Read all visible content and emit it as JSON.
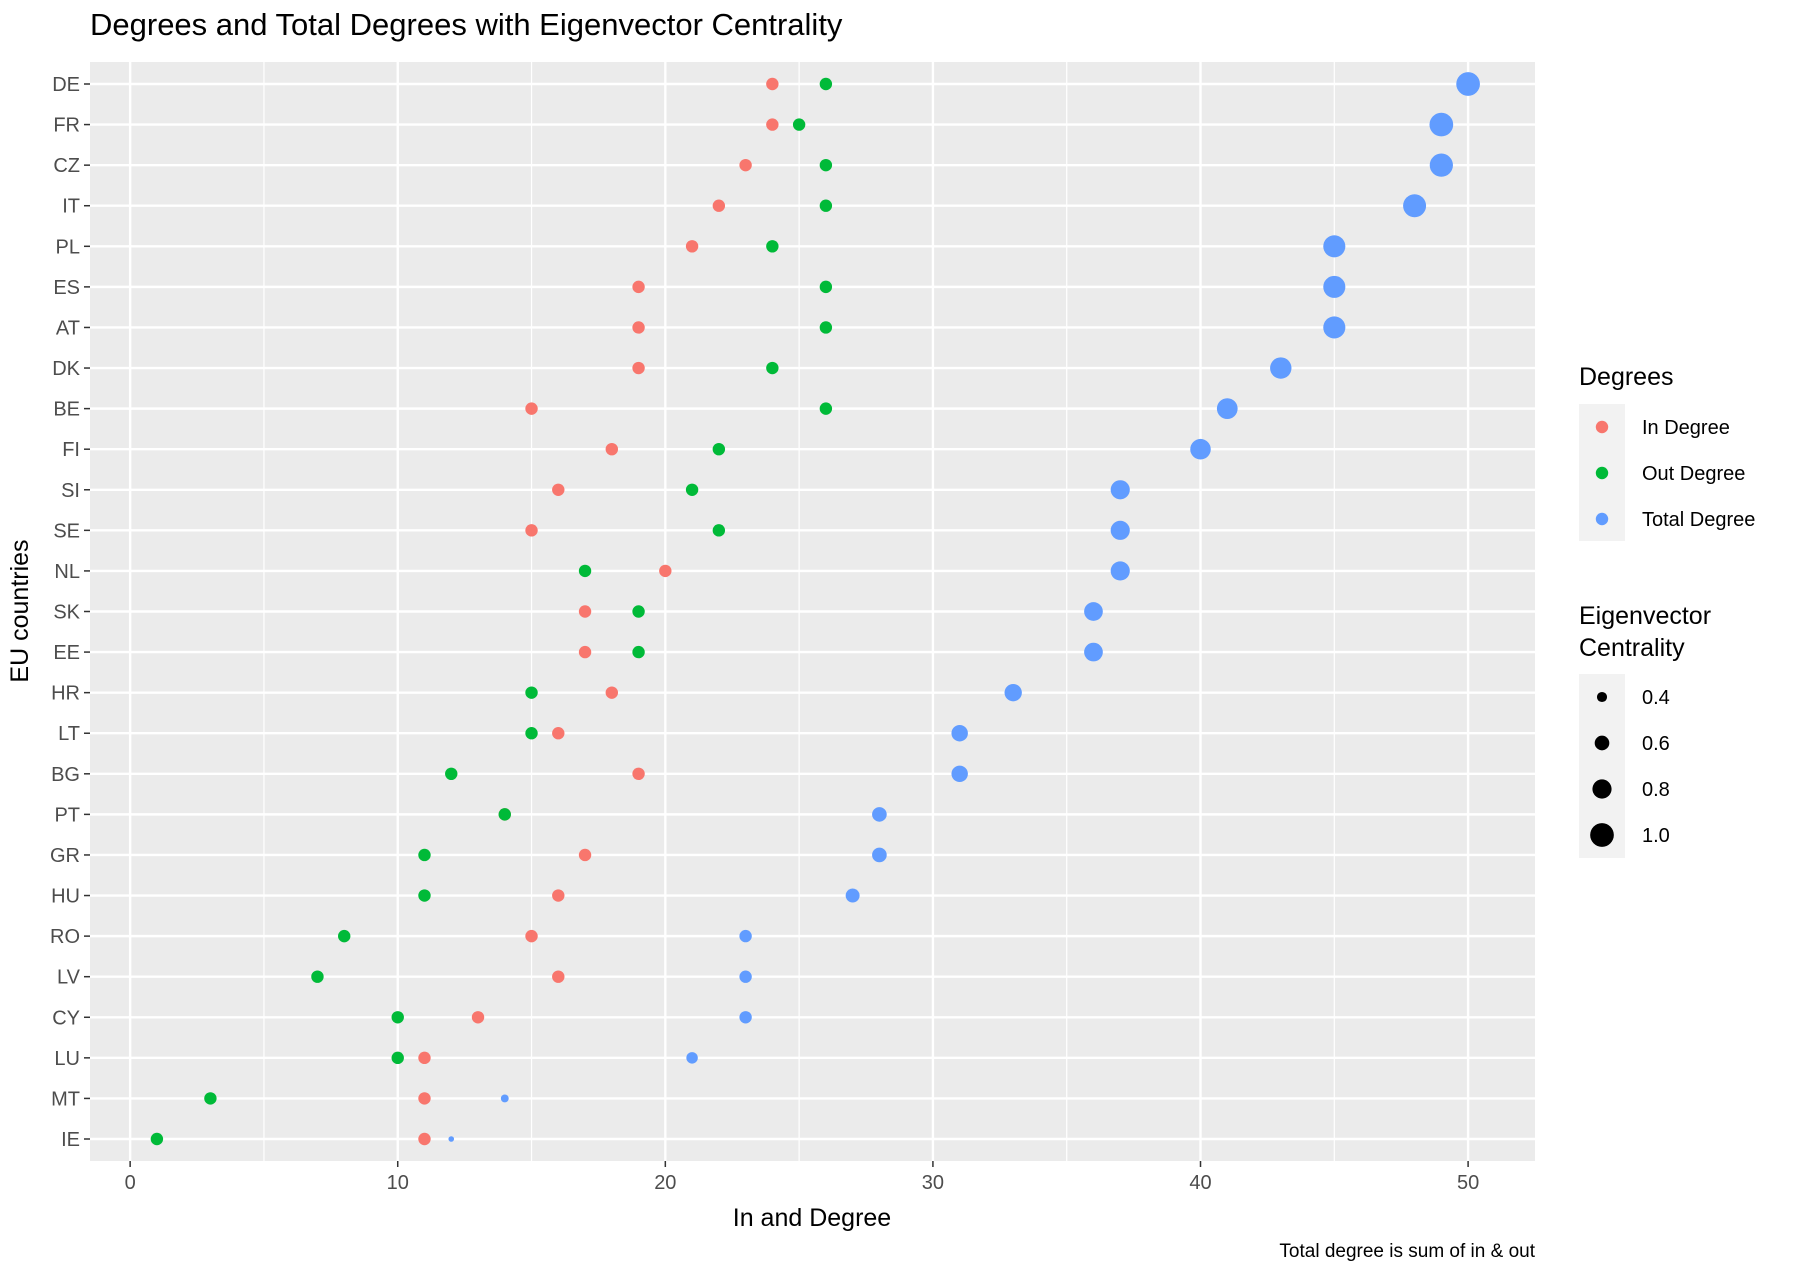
{
  "chart_data": {
    "type": "scatter",
    "title": "Degrees and Total Degrees with Eigenvector Centrality",
    "xlabel": "In and Degree",
    "ylabel": "EU countries",
    "caption": "Total degree is sum of in & out",
    "xlim": [
      -1.5,
      52.5
    ],
    "xticks": [
      0,
      10,
      20,
      30,
      40,
      50
    ],
    "grid": true,
    "legend_position": "right",
    "countries": [
      "DE",
      "FR",
      "CZ",
      "IT",
      "PL",
      "ES",
      "AT",
      "DK",
      "BE",
      "FI",
      "SI",
      "SE",
      "NL",
      "SK",
      "EE",
      "HR",
      "LT",
      "BG",
      "PT",
      "GR",
      "HU",
      "RO",
      "LV",
      "CY",
      "LU",
      "MT",
      "IE"
    ],
    "series": [
      {
        "name": "In Degree",
        "color": "#F8766D",
        "values": [
          24,
          24,
          23,
          22,
          21,
          19,
          19,
          19,
          15,
          18,
          16,
          15,
          20,
          17,
          17,
          18,
          16,
          19,
          14,
          17,
          16,
          15,
          16,
          13,
          11,
          11,
          11
        ],
        "hidden_by_overlap": [
          "PT"
        ]
      },
      {
        "name": "Out Degree",
        "color": "#00BA38",
        "values": [
          26,
          25,
          26,
          26,
          24,
          26,
          26,
          24,
          26,
          22,
          21,
          22,
          17,
          19,
          19,
          15,
          15,
          12,
          14,
          11,
          11,
          8,
          7,
          10,
          10,
          3,
          1
        ]
      },
      {
        "name": "Total Degree",
        "color": "#619CFF",
        "values": [
          50,
          49,
          49,
          48,
          45,
          45,
          45,
          43,
          41,
          40,
          37,
          37,
          37,
          36,
          36,
          33,
          31,
          31,
          28,
          28,
          27,
          23,
          23,
          23,
          21,
          14,
          12
        ],
        "eigenvector_centrality": [
          1.0,
          1.0,
          0.98,
          0.97,
          0.93,
          0.93,
          0.93,
          0.9,
          0.87,
          0.86,
          0.8,
          0.8,
          0.8,
          0.78,
          0.78,
          0.72,
          0.68,
          0.68,
          0.6,
          0.6,
          0.57,
          0.5,
          0.5,
          0.5,
          0.46,
          0.3,
          0.2
        ]
      }
    ],
    "legend_color": {
      "title": "Degrees",
      "entries": [
        "In Degree",
        "Out Degree",
        "Total Degree"
      ]
    },
    "legend_size": {
      "title_lines": [
        "Eigenvector",
        "Centrality"
      ],
      "entries": [
        {
          "label": "0.4",
          "value": 0.4
        },
        {
          "label": "0.6",
          "value": 0.6
        },
        {
          "label": "0.8",
          "value": 0.8
        },
        {
          "label": "1.0",
          "value": 1.0
        }
      ]
    }
  }
}
